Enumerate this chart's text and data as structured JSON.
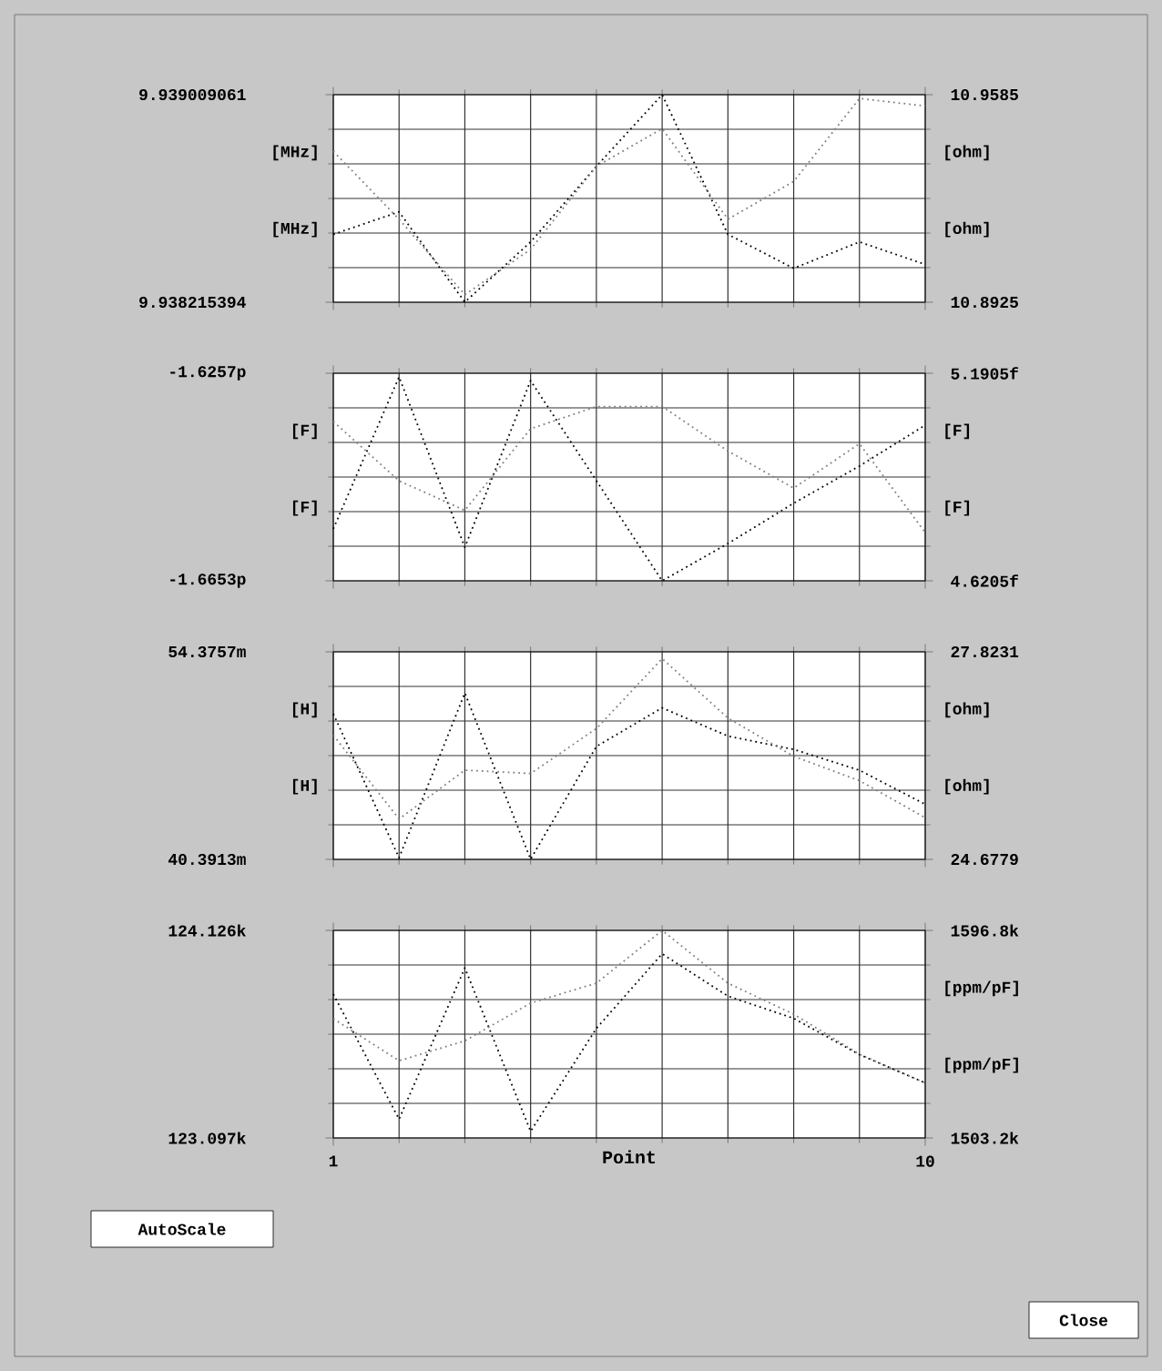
{
  "chart_data": [
    {
      "type": "line",
      "x": [
        1,
        2,
        3,
        4,
        5,
        6,
        7,
        8,
        9,
        10
      ],
      "xlim": [
        1,
        10
      ],
      "xticks": [
        1,
        10
      ],
      "tick_labels": "y",
      "grid": true,
      "line_style": "dotted",
      "ylabel": "[MHz]",
      "ylim": [
        9.938215394,
        9.939009061
      ],
      "yticks": [
        9.938215394,
        9.939009061
      ],
      "y2label": "[ohm]",
      "y2lim": [
        10.8925,
        10.9585
      ],
      "y2ticks": [
        10.8925,
        10.9585
      ],
      "series": [
        {
          "color": "#000000",
          "values": [
            9.938475,
            9.938561,
            9.938216,
            9.938446,
            9.938735,
            9.939009,
            9.938475,
            9.938345,
            9.938446,
            9.93836
          ]
        },
        {
          "color": "#7f7f7f",
          "axis": "y2",
          "values": [
            10.9405,
            10.9189,
            10.8949,
            10.9093,
            10.9357,
            10.9477,
            10.9189,
            10.9309,
            10.9573,
            10.9549
          ]
        }
      ]
    },
    {
      "type": "line",
      "x": [
        1,
        2,
        3,
        4,
        5,
        6,
        7,
        8,
        9,
        10
      ],
      "xlim": [
        1,
        10
      ],
      "xticks": [
        1,
        10
      ],
      "tick_labels": "y",
      "grid": true,
      "line_style": "dotted",
      "ylabel": "[F]",
      "ylim": [
        -1.6653,
        -1.6257
      ],
      "yticks": [
        {
          "value": -1.6653,
          "label": "-1.6653p"
        },
        {
          "value": -1.6257,
          "label": "-1.6257p"
        }
      ],
      "y2label": "[F]",
      "y2lim": [
        4.6205,
        5.1905
      ],
      "y2ticks": [
        {
          "value": 4.6205,
          "label": "4.6205f"
        },
        {
          "value": 5.1905,
          "label": "5.1905f"
        }
      ],
      "series": [
        {
          "color": "#000000",
          "values": [
            -1.6554,
            -1.6264,
            -1.6589,
            -1.6271,
            -1.6462,
            -1.6653,
            -1.6582,
            -1.6505,
            -1.6434,
            -1.6356
          ]
        },
        {
          "color": "#7f7f7f",
          "axis": "y2",
          "values": [
            5.058,
            4.895,
            4.814,
            5.038,
            5.099,
            5.099,
            4.977,
            4.875,
            4.997,
            4.753
          ]
        }
      ]
    },
    {
      "type": "line",
      "x": [
        1,
        2,
        3,
        4,
        5,
        6,
        7,
        8,
        9,
        10
      ],
      "xlim": [
        1,
        10
      ],
      "xticks": [
        1,
        10
      ],
      "tick_labels": "y",
      "grid": true,
      "line_style": "dotted",
      "ylabel": "[H]",
      "ylim": [
        40.3913,
        54.3757
      ],
      "yticks": [
        {
          "value": 40.3913,
          "label": "40.3913m"
        },
        {
          "value": 54.3757,
          "label": "54.3757m"
        }
      ],
      "y2label": "[ohm]",
      "y2lim": [
        24.6779,
        27.8231
      ],
      "y2ticks": [
        24.6779,
        27.8231
      ],
      "series": [
        {
          "color": "#000000",
          "values": [
            50.2,
            40.5,
            51.6,
            40.4,
            48.0,
            50.6,
            48.7,
            47.8,
            46.4,
            44.1
          ]
        },
        {
          "color": "#7f7f7f",
          "axis": "y2",
          "values": [
            26.56,
            25.29,
            26.03,
            25.98,
            26.66,
            27.72,
            26.82,
            26.24,
            25.87,
            25.31
          ]
        }
      ]
    },
    {
      "type": "line",
      "x": [
        1,
        2,
        3,
        4,
        5,
        6,
        7,
        8,
        9,
        10
      ],
      "xlim": [
        1,
        10
      ],
      "xticks": [
        1,
        10
      ],
      "xlabel": "Point",
      "grid": true,
      "line_style": "dotted",
      "ylim": [
        123.097,
        124.126
      ],
      "yticks": [
        {
          "value": 123.097,
          "label": "123.097k"
        },
        {
          "value": 124.126,
          "label": "124.126k"
        }
      ],
      "y2label": "[ppm/pF]",
      "y2lim": [
        1503.2,
        1596.8
      ],
      "y2ticks": [
        {
          "value": 1503.2,
          "label": "1503.2k"
        },
        {
          "value": 1596.8,
          "label": "1596.8k"
        }
      ],
      "annotations": [
        "AutoScale",
        "Close"
      ],
      "series": [
        {
          "color": "#000000",
          "values": [
            123.81,
            123.19,
            123.94,
            123.13,
            123.64,
            124.01,
            123.8,
            123.69,
            123.51,
            123.37
          ]
        },
        {
          "color": "#7f7f7f",
          "axis": "y2",
          "values": [
            1557,
            1538,
            1547,
            1564,
            1573,
            1596.8,
            1573,
            1559,
            1541,
            1528
          ]
        }
      ]
    }
  ]
}
